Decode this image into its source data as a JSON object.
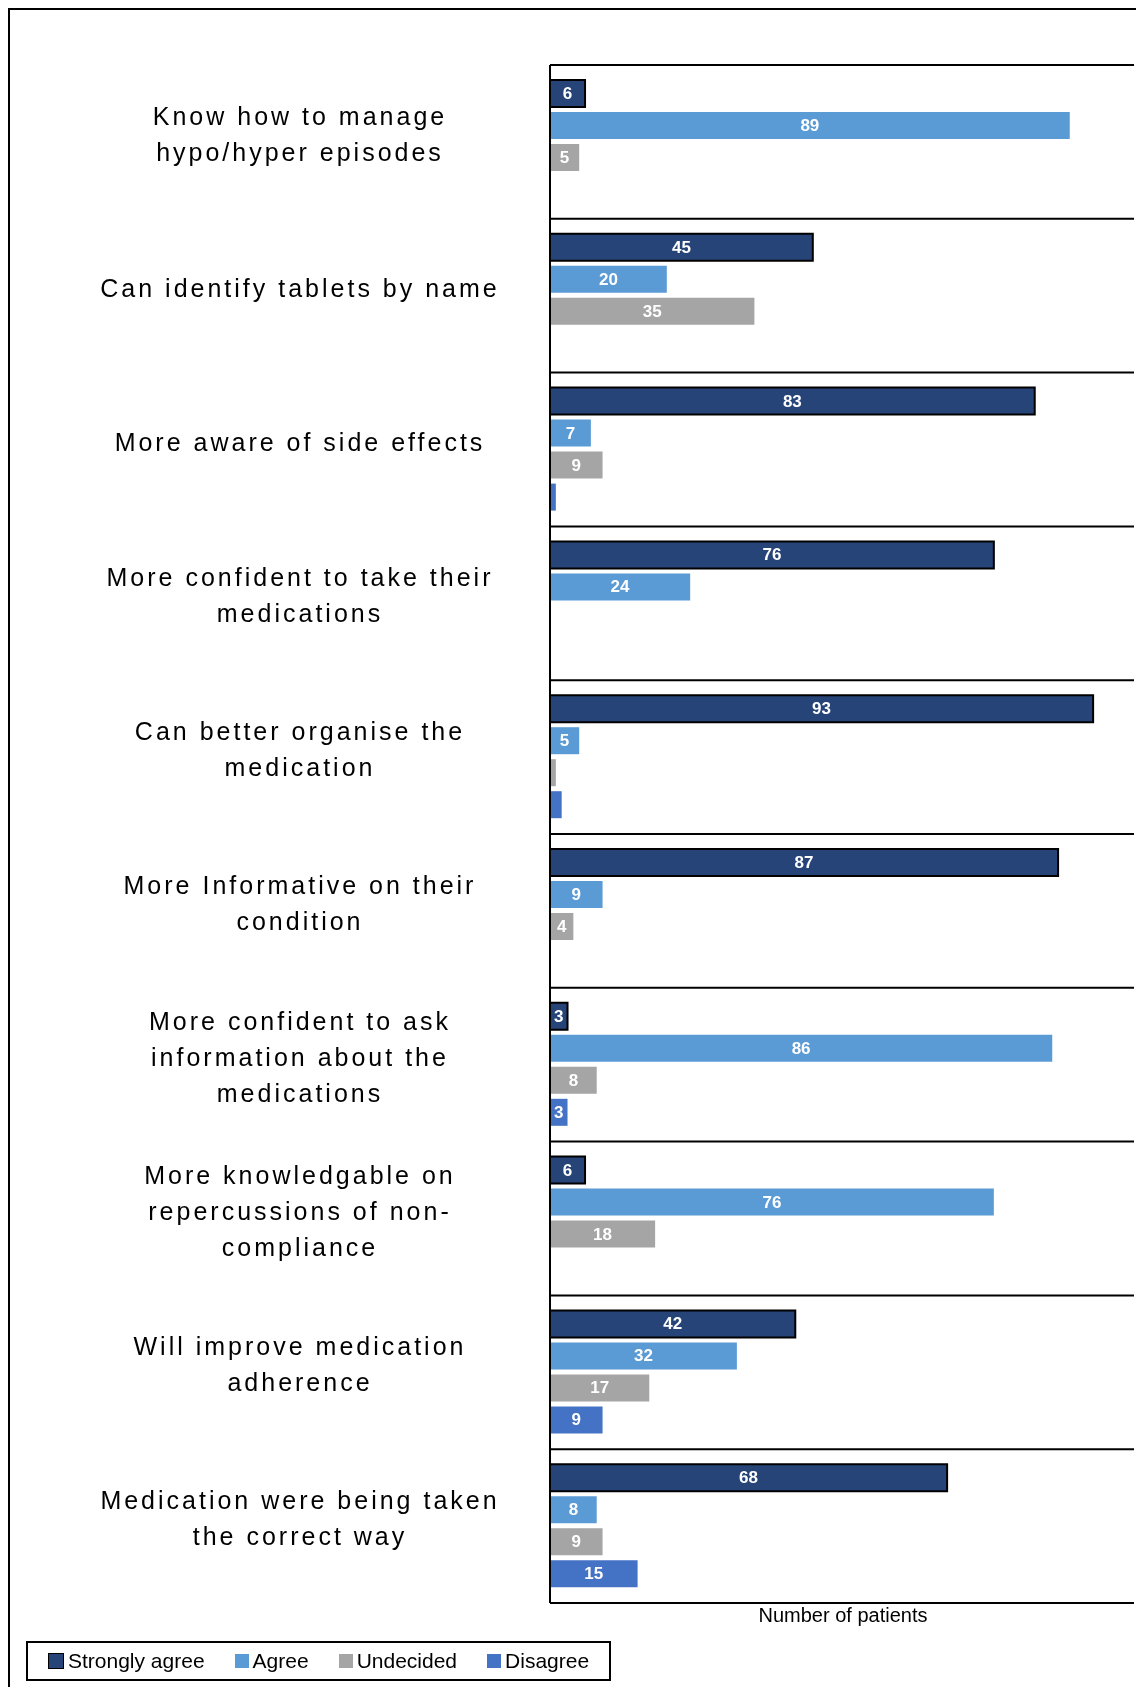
{
  "chart_data": {
    "type": "bar",
    "orientation": "horizontal",
    "xlabel": "Number of patients",
    "categories": [
      "Know how to manage hypo/hyper episodes",
      "Can identify tablets by name",
      "More aware of side effects",
      "More confident to take their medications",
      "Can better organise the medication",
      "More Informative on their condition",
      "More confident to ask information about the medications",
      "More knowledgable on repercussions of non-compliance",
      "Will improve medication adherence",
      "Medication were being taken the correct way"
    ],
    "series": [
      {
        "name": "Strongly agree",
        "color": "#264478",
        "values": [
          6,
          45,
          83,
          76,
          93,
          87,
          3,
          6,
          42,
          68
        ],
        "value_labels": [
          "6",
          "45",
          "83",
          "76",
          "93",
          "87",
          "3",
          "6",
          "42",
          "68"
        ]
      },
      {
        "name": "Agree",
        "color": "#5b9bd5",
        "values": [
          89,
          20,
          7,
          24,
          5,
          9,
          86,
          76,
          32,
          8
        ],
        "value_labels": [
          "89",
          "20",
          "7",
          "24",
          "5",
          "9",
          "86",
          "76",
          "32",
          "8"
        ]
      },
      {
        "name": "Undecided",
        "color": "#a5a5a5",
        "values": [
          5,
          35,
          9,
          null,
          1,
          4,
          8,
          18,
          17,
          9
        ],
        "value_labels": [
          "5",
          "35",
          "9",
          null,
          null,
          "4",
          "8",
          "18",
          "17",
          "9"
        ]
      },
      {
        "name": "Disagree",
        "color": "#4472c4",
        "values": [
          null,
          null,
          1,
          null,
          2,
          null,
          3,
          null,
          9,
          15
        ],
        "value_labels": [
          null,
          null,
          null,
          null,
          null,
          null,
          "3",
          null,
          "9",
          "15"
        ]
      }
    ],
    "xlim": [
      0,
      100
    ],
    "tick_labels": "y",
    "grid": "y",
    "legend": "bottom left"
  }
}
